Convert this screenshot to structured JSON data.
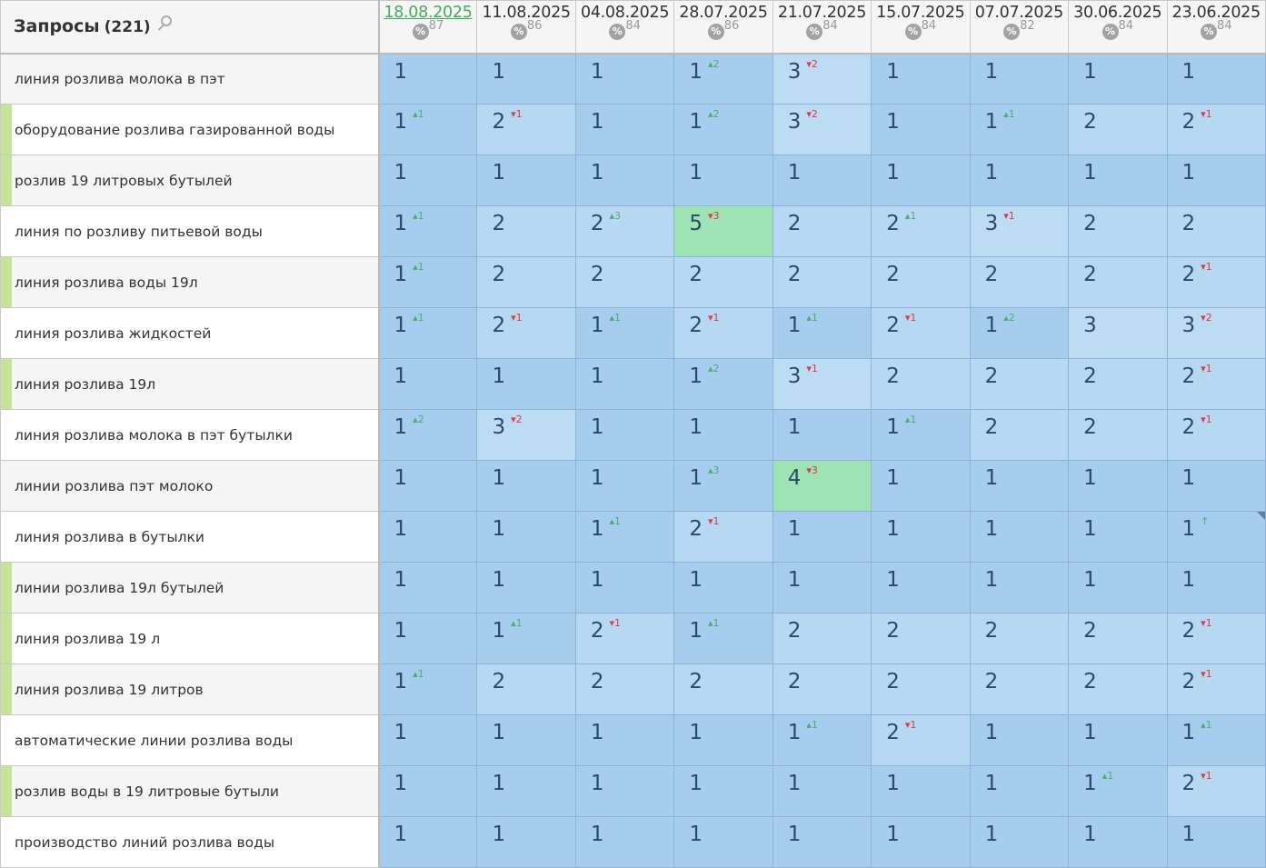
{
  "header": {
    "title": "Запросы",
    "count": "(221)",
    "search_icon": "search-icon",
    "pct_icon_label": "%"
  },
  "columns": [
    {
      "date": "18.08.2025",
      "pct": "87",
      "current": true
    },
    {
      "date": "11.08.2025",
      "pct": "86"
    },
    {
      "date": "04.08.2025",
      "pct": "84"
    },
    {
      "date": "28.07.2025",
      "pct": "86"
    },
    {
      "date": "21.07.2025",
      "pct": "84"
    },
    {
      "date": "15.07.2025",
      "pct": "84"
    },
    {
      "date": "07.07.2025",
      "pct": "82"
    },
    {
      "date": "30.06.2025",
      "pct": "84"
    },
    {
      "date": "23.06.2025",
      "pct": "84"
    }
  ],
  "colors": {
    "rank1": "#a6cdee",
    "rank2": "#b6d8f2",
    "rank3": "#bcdcf3",
    "top_change": "#9de3b4",
    "up": "#4cae6a",
    "down": "#e2383b",
    "marker": "#c5e39a"
  },
  "rows": [
    {
      "query": "линия розлива молока в пэт",
      "marked": false,
      "cells": [
        [
          1,
          null
        ],
        [
          1,
          null
        ],
        [
          1,
          null
        ],
        [
          1,
          "+2"
        ],
        [
          3,
          "-2"
        ],
        [
          1,
          null
        ],
        [
          1,
          null
        ],
        [
          1,
          null
        ],
        [
          1,
          null
        ]
      ]
    },
    {
      "query": "оборудование розлива газированной воды",
      "marked": true,
      "cells": [
        [
          1,
          "+1"
        ],
        [
          2,
          "-1"
        ],
        [
          1,
          null
        ],
        [
          1,
          "+2"
        ],
        [
          3,
          "-2"
        ],
        [
          1,
          null
        ],
        [
          1,
          "+1"
        ],
        [
          2,
          null
        ],
        [
          2,
          "-1"
        ]
      ]
    },
    {
      "query": "розлив 19 литровых бутылей",
      "marked": true,
      "cells": [
        [
          1,
          null
        ],
        [
          1,
          null
        ],
        [
          1,
          null
        ],
        [
          1,
          null
        ],
        [
          1,
          null
        ],
        [
          1,
          null
        ],
        [
          1,
          null
        ],
        [
          1,
          null
        ],
        [
          1,
          null
        ]
      ]
    },
    {
      "query": "линия по розливу питьевой воды",
      "marked": false,
      "cells": [
        [
          1,
          "+1"
        ],
        [
          2,
          null
        ],
        [
          2,
          "+3"
        ],
        [
          5,
          "-3"
        ],
        [
          2,
          null
        ],
        [
          2,
          "+1"
        ],
        [
          3,
          "-1"
        ],
        [
          2,
          null
        ],
        [
          2,
          null
        ]
      ]
    },
    {
      "query": "линия розлива воды 19л",
      "marked": true,
      "cells": [
        [
          1,
          "+1"
        ],
        [
          2,
          null
        ],
        [
          2,
          null
        ],
        [
          2,
          null
        ],
        [
          2,
          null
        ],
        [
          2,
          null
        ],
        [
          2,
          null
        ],
        [
          2,
          null
        ],
        [
          2,
          "-1"
        ]
      ]
    },
    {
      "query": "линия розлива жидкостей",
      "marked": false,
      "cells": [
        [
          1,
          "+1"
        ],
        [
          2,
          "-1"
        ],
        [
          1,
          "+1"
        ],
        [
          2,
          "-1"
        ],
        [
          1,
          "+1"
        ],
        [
          2,
          "-1"
        ],
        [
          1,
          "+2"
        ],
        [
          3,
          null
        ],
        [
          3,
          "-2"
        ]
      ]
    },
    {
      "query": "линия розлива 19л",
      "marked": true,
      "cells": [
        [
          1,
          null
        ],
        [
          1,
          null
        ],
        [
          1,
          null
        ],
        [
          1,
          "+2"
        ],
        [
          3,
          "-1"
        ],
        [
          2,
          null
        ],
        [
          2,
          null
        ],
        [
          2,
          null
        ],
        [
          2,
          "-1"
        ]
      ]
    },
    {
      "query": "линия розлива молока в пэт бутылки",
      "marked": false,
      "cells": [
        [
          1,
          "+2"
        ],
        [
          3,
          "-2"
        ],
        [
          1,
          null
        ],
        [
          1,
          null
        ],
        [
          1,
          null
        ],
        [
          1,
          "+1"
        ],
        [
          2,
          null
        ],
        [
          2,
          null
        ],
        [
          2,
          "-1"
        ]
      ]
    },
    {
      "query": "линии розлива пэт молоко",
      "marked": false,
      "cells": [
        [
          1,
          null
        ],
        [
          1,
          null
        ],
        [
          1,
          null
        ],
        [
          1,
          "+3"
        ],
        [
          4,
          "-3"
        ],
        [
          1,
          null
        ],
        [
          1,
          null
        ],
        [
          1,
          null
        ],
        [
          1,
          null
        ]
      ]
    },
    {
      "query": "линия розлива в бутылки",
      "marked": false,
      "cells": [
        [
          1,
          null
        ],
        [
          1,
          null
        ],
        [
          1,
          "+1"
        ],
        [
          2,
          "-1"
        ],
        [
          1,
          null
        ],
        [
          1,
          null
        ],
        [
          1,
          null
        ],
        [
          1,
          null
        ],
        [
          1,
          "↑"
        ]
      ]
    },
    {
      "query": "линии розлива 19л бутылей",
      "marked": true,
      "cells": [
        [
          1,
          null
        ],
        [
          1,
          null
        ],
        [
          1,
          null
        ],
        [
          1,
          null
        ],
        [
          1,
          null
        ],
        [
          1,
          null
        ],
        [
          1,
          null
        ],
        [
          1,
          null
        ],
        [
          1,
          null
        ]
      ]
    },
    {
      "query": "линия розлива 19 л",
      "marked": true,
      "cells": [
        [
          1,
          null
        ],
        [
          1,
          "+1"
        ],
        [
          2,
          "-1"
        ],
        [
          1,
          "+1"
        ],
        [
          2,
          null
        ],
        [
          2,
          null
        ],
        [
          2,
          null
        ],
        [
          2,
          null
        ],
        [
          2,
          "-1"
        ]
      ]
    },
    {
      "query": "линия розлива 19 литров",
      "marked": true,
      "cells": [
        [
          1,
          "+1"
        ],
        [
          2,
          null
        ],
        [
          2,
          null
        ],
        [
          2,
          null
        ],
        [
          2,
          null
        ],
        [
          2,
          null
        ],
        [
          2,
          null
        ],
        [
          2,
          null
        ],
        [
          2,
          "-1"
        ]
      ]
    },
    {
      "query": "автоматические линии розлива воды",
      "marked": false,
      "cells": [
        [
          1,
          null
        ],
        [
          1,
          null
        ],
        [
          1,
          null
        ],
        [
          1,
          null
        ],
        [
          1,
          "+1"
        ],
        [
          2,
          "-1"
        ],
        [
          1,
          null
        ],
        [
          1,
          null
        ],
        [
          1,
          "+1"
        ]
      ]
    },
    {
      "query": "розлив воды в 19 литровые бутыли",
      "marked": true,
      "cells": [
        [
          1,
          null
        ],
        [
          1,
          null
        ],
        [
          1,
          null
        ],
        [
          1,
          null
        ],
        [
          1,
          null
        ],
        [
          1,
          null
        ],
        [
          1,
          null
        ],
        [
          1,
          "+1"
        ],
        [
          2,
          "-1"
        ]
      ]
    },
    {
      "query": "производство линий розлива воды",
      "marked": false,
      "cells": [
        [
          1,
          null
        ],
        [
          1,
          null
        ],
        [
          1,
          null
        ],
        [
          1,
          null
        ],
        [
          1,
          null
        ],
        [
          1,
          null
        ],
        [
          1,
          null
        ],
        [
          1,
          null
        ],
        [
          1,
          null
        ]
      ]
    }
  ]
}
